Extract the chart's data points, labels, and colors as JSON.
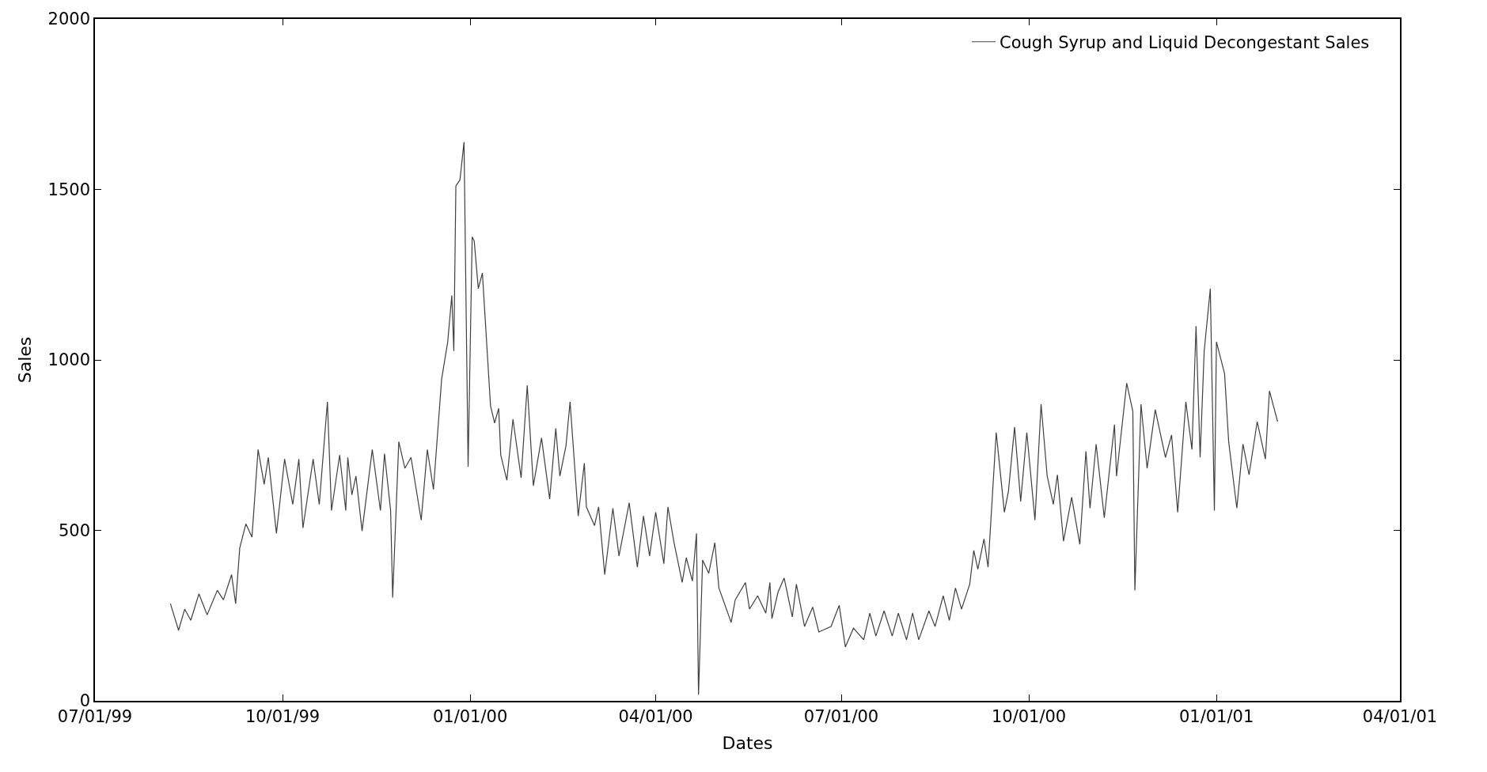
{
  "chart_data": {
    "type": "line",
    "xlabel": "Dates",
    "ylabel": "Sales",
    "xlim": [
      "1999-07-01",
      "2001-04-01"
    ],
    "xticks": [
      {
        "value": "1999-07-01",
        "label": "07/01/99"
      },
      {
        "value": "1999-10-01",
        "label": "10/01/99"
      },
      {
        "value": "2000-01-01",
        "label": "01/01/00"
      },
      {
        "value": "2000-04-01",
        "label": "04/01/00"
      },
      {
        "value": "2000-07-01",
        "label": "07/01/00"
      },
      {
        "value": "2000-10-01",
        "label": "10/01/00"
      },
      {
        "value": "2001-01-01",
        "label": "01/01/01"
      },
      {
        "value": "2001-04-01",
        "label": "04/01/01"
      }
    ],
    "ylim": [
      0,
      2000
    ],
    "yticks": [
      0,
      500,
      1000,
      1500,
      2000
    ],
    "legend": "top right",
    "marker": "none",
    "line_style": "solid",
    "x": [
      "1999-08-07",
      "1999-08-11",
      "1999-08-14",
      "1999-08-17",
      "1999-08-21",
      "1999-08-25",
      "1999-08-30",
      "1999-09-02",
      "1999-09-06",
      "1999-09-08",
      "1999-09-10",
      "1999-09-13",
      "1999-09-16",
      "1999-09-19",
      "1999-09-22",
      "1999-09-24",
      "1999-09-28",
      "1999-10-02",
      "1999-10-06",
      "1999-10-09",
      "1999-10-11",
      "1999-10-16",
      "1999-10-19",
      "1999-10-23",
      "1999-10-25",
      "1999-10-29",
      "1999-11-01",
      "1999-11-02",
      "1999-11-04",
      "1999-11-06",
      "1999-11-09",
      "1999-11-14",
      "1999-11-18",
      "1999-11-20",
      "1999-11-23",
      "1999-11-24",
      "1999-11-27",
      "1999-11-30",
      "1999-12-03",
      "1999-12-08",
      "1999-12-11",
      "1999-12-14",
      "1999-12-18",
      "1999-12-21",
      "1999-12-23",
      "1999-12-24",
      "1999-12-25",
      "1999-12-27",
      "1999-12-29",
      "1999-12-31",
      "2000-01-02",
      "2000-01-03",
      "2000-01-05",
      "2000-01-07",
      "2000-01-11",
      "2000-01-13",
      "2000-01-15",
      "2000-01-16",
      "2000-01-19",
      "2000-01-22",
      "2000-01-26",
      "2000-01-29",
      "2000-02-01",
      "2000-02-05",
      "2000-02-09",
      "2000-02-12",
      "2000-02-14",
      "2000-02-17",
      "2000-02-19",
      "2000-02-23",
      "2000-02-26",
      "2000-02-27",
      "2000-03-02",
      "2000-03-04",
      "2000-03-07",
      "2000-03-11",
      "2000-03-14",
      "2000-03-19",
      "2000-03-23",
      "2000-03-26",
      "2000-03-29",
      "2000-04-01",
      "2000-04-05",
      "2000-04-07",
      "2000-04-10",
      "2000-04-14",
      "2000-04-16",
      "2000-04-19",
      "2000-04-21",
      "2000-04-22",
      "2000-04-24",
      "2000-04-27",
      "2000-04-30",
      "2000-05-02",
      "2000-05-08",
      "2000-05-10",
      "2000-05-15",
      "2000-05-17",
      "2000-05-21",
      "2000-05-25",
      "2000-05-27",
      "2000-05-28",
      "2000-05-31",
      "2000-06-03",
      "2000-06-07",
      "2000-06-09",
      "2000-06-13",
      "2000-06-17",
      "2000-06-20",
      "2000-06-26",
      "2000-06-30",
      "2000-07-03",
      "2000-07-07",
      "2000-07-12",
      "2000-07-15",
      "2000-07-18",
      "2000-07-22",
      "2000-07-26",
      "2000-07-29",
      "2000-08-02",
      "2000-08-05",
      "2000-08-08",
      "2000-08-13",
      "2000-08-16",
      "2000-08-20",
      "2000-08-23",
      "2000-08-26",
      "2000-08-29",
      "2000-09-02",
      "2000-09-04",
      "2000-09-06",
      "2000-09-09",
      "2000-09-11",
      "2000-09-15",
      "2000-09-19",
      "2000-09-21",
      "2000-09-24",
      "2000-09-27",
      "2000-09-30",
      "2000-10-04",
      "2000-10-07",
      "2000-10-10",
      "2000-10-13",
      "2000-10-15",
      "2000-10-18",
      "2000-10-22",
      "2000-10-26",
      "2000-10-29",
      "2000-10-31",
      "2000-11-03",
      "2000-11-07",
      "2000-11-12",
      "2000-11-13",
      "2000-11-18",
      "2000-11-21",
      "2000-11-22",
      "2000-11-25",
      "2000-11-28",
      "2000-12-02",
      "2000-12-07",
      "2000-12-10",
      "2000-12-13",
      "2000-12-17",
      "2000-12-20",
      "2000-12-22",
      "2000-12-24",
      "2000-12-26",
      "2000-12-29",
      "2000-12-31",
      "2001-01-01",
      "2001-01-05",
      "2001-01-07",
      "2001-01-11",
      "2001-01-14",
      "2001-01-17",
      "2001-01-21",
      "2001-01-25",
      "2001-01-27",
      "2001-01-31"
    ],
    "series": [
      {
        "name": "Cough Syrup and Liquid Decongestant Sales",
        "color": "#404040",
        "values": [
          285,
          207,
          269,
          236,
          314,
          252,
          324,
          296,
          370,
          285,
          448,
          519,
          480,
          737,
          635,
          714,
          491,
          709,
          576,
          709,
          507,
          709,
          576,
          877,
          558,
          721,
          558,
          714,
          604,
          659,
          498,
          737,
          558,
          725,
          558,
          303,
          760,
          682,
          714,
          530,
          737,
          620,
          943,
          1053,
          1189,
          1026,
          1510,
          1528,
          1639,
          686,
          1361,
          1349,
          1209,
          1255,
          865,
          815,
          858,
          721,
          647,
          826,
          654,
          925,
          631,
          771,
          592,
          799,
          659,
          748,
          877,
          542,
          697,
          569,
          514,
          569,
          370,
          565,
          425,
          581,
          392,
          542,
          425,
          553,
          402,
          569,
          464,
          347,
          420,
          351,
          491,
          18,
          413,
          374,
          464,
          331,
          230,
          296,
          347,
          269,
          308,
          257,
          347,
          241,
          319,
          360,
          246,
          342,
          218,
          275,
          202,
          218,
          280,
          158,
          213,
          179,
          257,
          190,
          264,
          190,
          257,
          179,
          257,
          179,
          264,
          218,
          308,
          236,
          331,
          269,
          342,
          441,
          386,
          475,
          392,
          787,
          553,
          615,
          803,
          585,
          787,
          530,
          870,
          659,
          576,
          663,
          468,
          597,
          459,
          732,
          565,
          753,
          537,
          810,
          659,
          932,
          849,
          324,
          870,
          682,
          854,
          714,
          780,
          553,
          877,
          737,
          1099,
          714,
          1026,
          1209,
          558,
          1053,
          959,
          760,
          565,
          753,
          663,
          819,
          709,
          909,
          819
        ]
      }
    ]
  }
}
